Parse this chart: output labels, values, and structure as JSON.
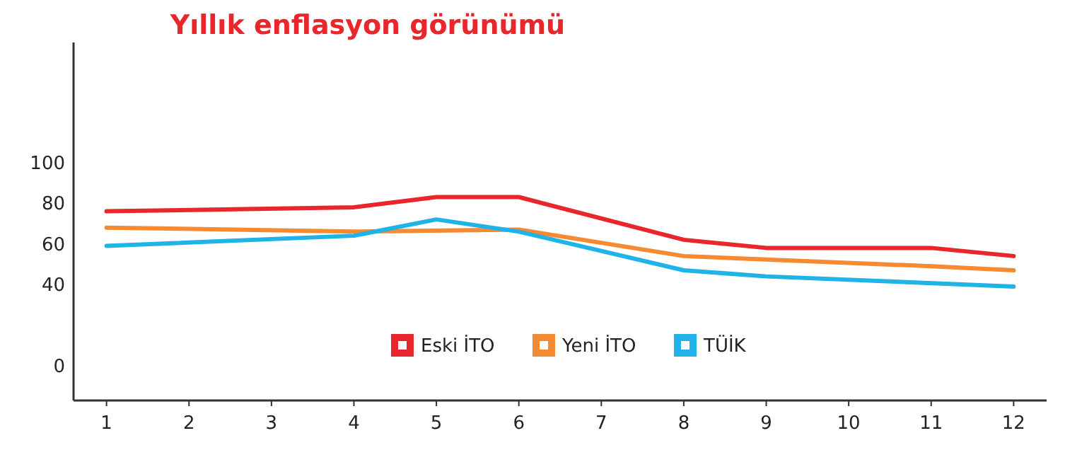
{
  "chart_data": {
    "type": "line",
    "title": "Yıllık enflasyon görünümü",
    "xlim": [
      0.6,
      12.4
    ],
    "xticks": [
      1,
      2,
      3,
      4,
      5,
      6,
      7,
      8,
      9,
      10,
      11,
      12
    ],
    "ylim": [
      -17,
      159
    ],
    "yticks": [
      0,
      40,
      60,
      80,
      100
    ],
    "legend": "bottom",
    "marker": "none",
    "line_style": "solid",
    "series": [
      {
        "name": "Eski İTO",
        "color": "#e8262b",
        "x": [
          1,
          4,
          5,
          6,
          8,
          9,
          11,
          12
        ],
        "values": [
          76,
          78,
          83,
          83,
          62,
          58,
          58,
          54
        ]
      },
      {
        "name": "Yeni İTO",
        "color": "#f58a32",
        "x": [
          1,
          4,
          6,
          8,
          11,
          12
        ],
        "values": [
          68,
          66,
          67,
          54,
          49,
          47
        ]
      },
      {
        "name": "TÜİK",
        "color": "#1fb3e8",
        "x": [
          1,
          4,
          5,
          6,
          8,
          9,
          12
        ],
        "values": [
          59,
          64,
          72,
          66,
          47,
          44,
          39
        ]
      }
    ]
  }
}
